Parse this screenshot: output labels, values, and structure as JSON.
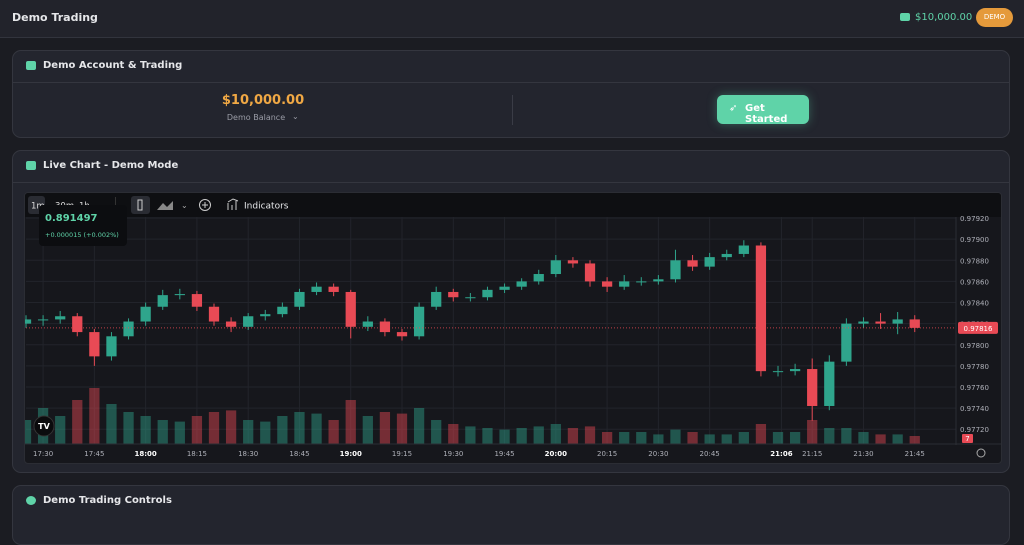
{
  "header": {
    "title": "Demo Trading",
    "balance": "$10,000.00",
    "badge": "DEMO"
  },
  "account": {
    "title": "Demo Account & Trading",
    "balance": "$10,000.00",
    "balance_label": "Demo Balance",
    "button": "Get Started"
  },
  "chart_card": {
    "title": "Live Chart - Demo Mode",
    "toolbar": {
      "intervals": [
        "1m",
        "30m",
        "1h"
      ],
      "indicators": "Indicators"
    },
    "tooltip": {
      "price": "0.891497",
      "change": "+0.000015 (+0.002%)"
    }
  },
  "chart_data": {
    "type": "candlestick",
    "x": [
      "17:25",
      "17:30",
      "17:35",
      "17:40",
      "17:45",
      "17:50",
      "17:55",
      "18:00",
      "18:05",
      "18:10",
      "18:15",
      "18:20",
      "18:25",
      "18:30",
      "18:35",
      "18:40",
      "18:45",
      "18:50",
      "18:55",
      "19:00",
      "19:05",
      "19:10",
      "19:15",
      "19:20",
      "19:25",
      "19:30",
      "19:35",
      "19:40",
      "19:45",
      "19:50",
      "19:55",
      "20:00",
      "20:05",
      "20:10",
      "20:15",
      "20:20",
      "20:25",
      "20:30",
      "20:35",
      "20:40",
      "20:45",
      "20:50",
      "20:55",
      "21:00",
      "21:05",
      "21:10",
      "21:15",
      "21:20",
      "21:25",
      "21:30",
      "21:35",
      "21:40",
      "21:45"
    ],
    "open": [
      0.9782,
      0.97824,
      0.97824,
      0.97827,
      0.97812,
      0.97789,
      0.97808,
      0.97822,
      0.97836,
      0.97847,
      0.97848,
      0.97836,
      0.97822,
      0.97817,
      0.97827,
      0.97829,
      0.97836,
      0.9785,
      0.97855,
      0.9785,
      0.97817,
      0.97822,
      0.97812,
      0.97808,
      0.97836,
      0.9785,
      0.97845,
      0.97845,
      0.97852,
      0.97855,
      0.9786,
      0.97867,
      0.9788,
      0.97877,
      0.9786,
      0.97855,
      0.9786,
      0.9786,
      0.97862,
      0.9788,
      0.97874,
      0.97883,
      0.97886,
      0.97894,
      0.97775,
      0.97775,
      0.97777,
      0.97742,
      0.97784,
      0.9782,
      0.97822,
      0.9782,
      0.97824
    ],
    "high": [
      0.97828,
      0.97828,
      0.97832,
      0.9783,
      0.97815,
      0.97812,
      0.97825,
      0.9784,
      0.97852,
      0.97853,
      0.97851,
      0.97839,
      0.97826,
      0.9783,
      0.97833,
      0.9784,
      0.97853,
      0.97859,
      0.97858,
      0.97852,
      0.97827,
      0.97825,
      0.97815,
      0.9784,
      0.97855,
      0.97853,
      0.97849,
      0.97855,
      0.97858,
      0.97863,
      0.97871,
      0.97885,
      0.97883,
      0.9788,
      0.97864,
      0.97866,
      0.97864,
      0.97866,
      0.9789,
      0.97885,
      0.97887,
      0.9789,
      0.97899,
      0.97897,
      0.9778,
      0.97782,
      0.97787,
      0.9779,
      0.97825,
      0.97826,
      0.9783,
      0.97831,
      0.97828
    ],
    "low": [
      0.97816,
      0.97818,
      0.9782,
      0.97808,
      0.9778,
      0.97785,
      0.97805,
      0.97818,
      0.97833,
      0.97843,
      0.97832,
      0.97818,
      0.97812,
      0.97814,
      0.97823,
      0.97826,
      0.97833,
      0.97847,
      0.97846,
      0.97806,
      0.97813,
      0.97808,
      0.97804,
      0.97805,
      0.97833,
      0.97841,
      0.97841,
      0.97842,
      0.97849,
      0.97852,
      0.97857,
      0.97864,
      0.97873,
      0.97855,
      0.9785,
      0.97852,
      0.97856,
      0.97857,
      0.97859,
      0.9787,
      0.97871,
      0.9788,
      0.97883,
      0.9777,
      0.9777,
      0.97771,
      0.97728,
      0.97738,
      0.9778,
      0.97816,
      0.97815,
      0.9781,
      0.97812
    ],
    "close": [
      0.97824,
      0.97824,
      0.97827,
      0.97812,
      0.97789,
      0.97808,
      0.97822,
      0.97836,
      0.97847,
      0.97848,
      0.97836,
      0.97822,
      0.97817,
      0.97827,
      0.97829,
      0.97836,
      0.9785,
      0.97855,
      0.9785,
      0.97817,
      0.97822,
      0.97812,
      0.97808,
      0.97836,
      0.9785,
      0.97845,
      0.97845,
      0.97852,
      0.97855,
      0.9786,
      0.97867,
      0.9788,
      0.97877,
      0.9786,
      0.97855,
      0.9786,
      0.9786,
      0.97862,
      0.9788,
      0.97874,
      0.97883,
      0.97886,
      0.97894,
      0.97775,
      0.97775,
      0.97777,
      0.97742,
      0.97784,
      0.9782,
      0.97822,
      0.9782,
      0.97824,
      0.97816
    ],
    "volume": [
      30,
      45,
      35,
      55,
      70,
      50,
      40,
      35,
      30,
      28,
      35,
      40,
      42,
      30,
      28,
      35,
      40,
      38,
      30,
      55,
      35,
      40,
      38,
      45,
      30,
      25,
      22,
      20,
      18,
      20,
      22,
      25,
      20,
      22,
      15,
      15,
      15,
      12,
      18,
      15,
      12,
      12,
      15,
      25,
      15,
      15,
      30,
      20,
      20,
      15,
      12,
      12,
      10
    ],
    "up_color": "#2fa58c",
    "down_color": "#e84a55",
    "xlim": [
      "17:25",
      "21:48"
    ],
    "xticks": [
      "17:30",
      "17:45",
      "18:00",
      "18:15",
      "18:30",
      "18:45",
      "19:00",
      "19:15",
      "19:30",
      "19:45",
      "20:00",
      "20:15",
      "20:30",
      "20:45",
      "21:06",
      "21:15",
      "21:30",
      "21:45"
    ],
    "xticks_bold": [
      false,
      false,
      true,
      false,
      false,
      false,
      true,
      false,
      false,
      false,
      true,
      false,
      false,
      false,
      true,
      false,
      false,
      false
    ],
    "ylim": [
      0.97706,
      0.97921
    ],
    "yticks": [
      {
        "value": 0.9772,
        "label": "0.97720"
      },
      {
        "value": 0.9774,
        "label": "0.97740"
      },
      {
        "value": 0.9776,
        "label": "0.97760"
      },
      {
        "value": 0.9778,
        "label": "0.97780"
      },
      {
        "value": 0.978,
        "label": "0.97800"
      },
      {
        "value": 0.9782,
        "label": "0.97820"
      },
      {
        "value": 0.9784,
        "label": "0.97840"
      },
      {
        "value": 0.9786,
        "label": "0.97860"
      },
      {
        "value": 0.9788,
        "label": "0.97880"
      },
      {
        "value": 0.979,
        "label": "0.97900"
      },
      {
        "value": 0.9792,
        "label": "0.97920"
      }
    ],
    "last_price": 0.97816,
    "countdown": "7",
    "grid": true
  },
  "controls": {
    "title": "Demo Trading Controls"
  }
}
